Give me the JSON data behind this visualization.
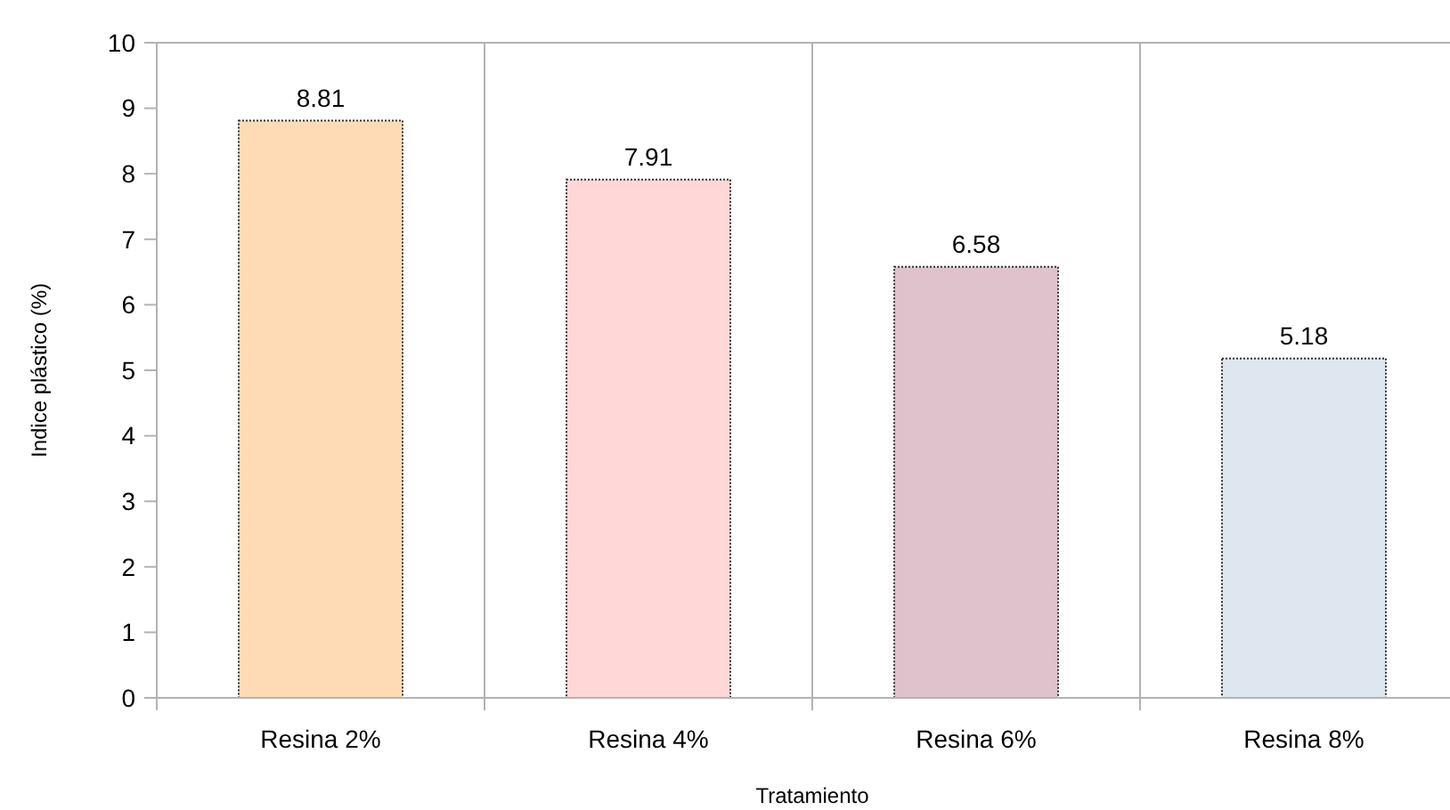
{
  "chart_data": {
    "type": "bar",
    "xlabel": "Tratamiento",
    "ylabel": "Indice plástico (%)",
    "categories": [
      "Resina 2%",
      "Resina 4%",
      "Resina 6%",
      "Resina 8%"
    ],
    "values": [
      8.81,
      7.91,
      6.58,
      5.18
    ],
    "colors": [
      "#ffdbb5",
      "#ffd7d7",
      "#e0c2cd",
      "#dee6ef"
    ],
    "ylim": [
      0,
      10
    ],
    "yticks": [
      0,
      1,
      2,
      3,
      4,
      5,
      6,
      7,
      8,
      9,
      10
    ],
    "grid": "x",
    "data_labels": true
  }
}
